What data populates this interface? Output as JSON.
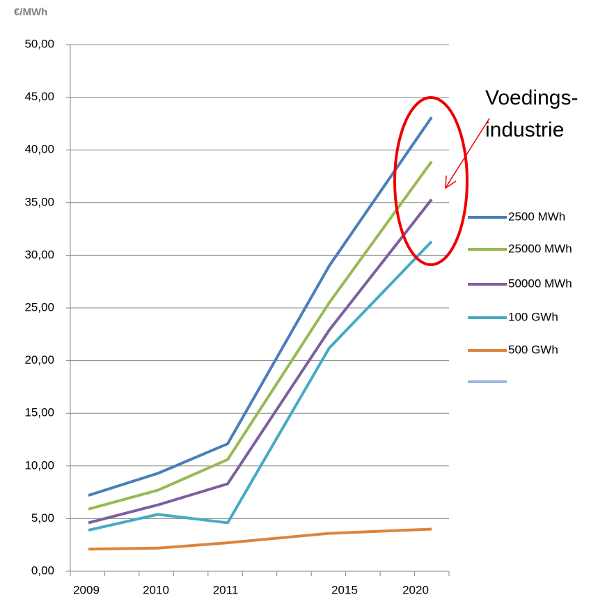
{
  "chart_data": {
    "type": "line",
    "y_label": "€/MWh",
    "annotation": [
      "Voedings-",
      "industrie"
    ],
    "categories": [
      "2009",
      "2010",
      "2011",
      "2015",
      "2020"
    ],
    "series": [
      {
        "name": "2500 MWh",
        "color": "#4a7ebb",
        "values": [
          7.2,
          9.3,
          12.1,
          29.0,
          43.1
        ]
      },
      {
        "name": "25000 MWh",
        "color": "#98b954",
        "values": [
          5.9,
          7.7,
          10.6,
          25.5,
          38.9
        ]
      },
      {
        "name": "50000 MWh",
        "color": "#7d5fa0",
        "values": [
          4.6,
          6.3,
          8.3,
          22.9,
          35.3
        ]
      },
      {
        "name": "100 GWh",
        "color": "#46aac5",
        "values": [
          3.9,
          5.4,
          4.6,
          21.2,
          31.3
        ]
      },
      {
        "name": "500 GWh",
        "color": "#db843d",
        "values": [
          2.1,
          2.2,
          2.7,
          3.6,
          4.0
        ]
      }
    ],
    "ylim": [
      0,
      50
    ],
    "yticks": [
      {
        "value": 0,
        "label": "0,00"
      },
      {
        "value": 5,
        "label": "5,00"
      },
      {
        "value": 10,
        "label": "10,00"
      },
      {
        "value": 15,
        "label": "15,00"
      },
      {
        "value": 20,
        "label": "20,00"
      },
      {
        "value": 25,
        "label": "25,00"
      },
      {
        "value": 30,
        "label": "30,00"
      },
      {
        "value": 35,
        "label": "35,00"
      },
      {
        "value": 40,
        "label": "40,00"
      },
      {
        "value": 45,
        "label": "45,00"
      },
      {
        "value": 50,
        "label": "50,00"
      }
    ],
    "grid": true
  }
}
